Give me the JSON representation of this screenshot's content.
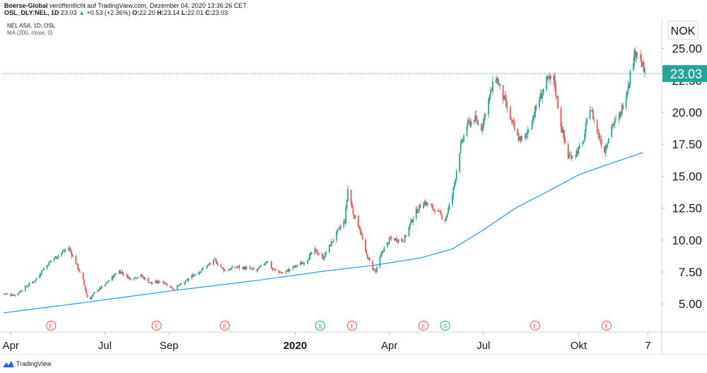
{
  "header": {
    "publisher": "Boerse-Global",
    "published_text": "veröffentlicht auf TradingView.com, Dezember 04, 2020 13:36:26 CET",
    "symbol": "OSL_DLY:NEL, 1D",
    "last": "23.03",
    "change": "+0.53 (+2.36%)",
    "open_label": "O:",
    "open": "22.20",
    "high_label": "H:",
    "high": "23.14",
    "low_label": "L:",
    "low": "22.01",
    "close_label": "C:",
    "close": "23.03"
  },
  "legend": {
    "title": "NEL ASA, 1D, OSL",
    "ma": "MA (200, close, 0)"
  },
  "footer": {
    "brand": "TradingView"
  },
  "colors": {
    "up": "#26a69a",
    "down": "#ef5350",
    "ma": "#2196f3",
    "price_line": "#26a69a",
    "grid": "#e0e3eb",
    "event": "#ef5350",
    "split": "#26a69a"
  },
  "chart_data": {
    "type": "candlestick",
    "currency": "NOK",
    "last_price": "23.03",
    "y_ticks": [
      "5.00",
      "7.50",
      "10.00",
      "12.50",
      "15.00",
      "17.50",
      "20.00",
      "22.50",
      "25.00"
    ],
    "ylim": [
      2.8,
      27.3
    ],
    "x_ticks": [
      "Apr",
      "Jul",
      "Sep",
      "2020",
      "Apr",
      "Jul",
      "Okt",
      "7"
    ],
    "x_tick_dates": [
      "2019-04-01",
      "2019-07-01",
      "2019-09-01",
      "2020-01-01",
      "2020-04-01",
      "2020-07-01",
      "2020-10-01",
      "2020-12-07"
    ],
    "bold_ticks": [
      "2020"
    ],
    "start_date": "2019-03-25",
    "end_date": "2020-12-04",
    "events": [
      {
        "label": "E",
        "date": "2019-05-10"
      },
      {
        "label": "E",
        "date": "2019-08-20"
      },
      {
        "label": "E",
        "date": "2019-10-25"
      },
      {
        "label": "S",
        "date": "2020-01-25"
      },
      {
        "label": "E",
        "date": "2020-02-25"
      },
      {
        "label": "E",
        "date": "2020-05-04"
      },
      {
        "label": "S",
        "date": "2020-05-25"
      },
      {
        "label": "E",
        "date": "2020-08-20"
      },
      {
        "label": "E",
        "date": "2020-10-28"
      }
    ],
    "close_path": [
      [
        "2019-03-25",
        5.8
      ],
      [
        "2019-04-05",
        5.7
      ],
      [
        "2019-04-15",
        6.3
      ],
      [
        "2019-04-25",
        6.9
      ],
      [
        "2019-05-01",
        7.6
      ],
      [
        "2019-05-10",
        8.4
      ],
      [
        "2019-05-20",
        9.0
      ],
      [
        "2019-05-27",
        9.4
      ],
      [
        "2019-06-03",
        8.2
      ],
      [
        "2019-06-10",
        6.8
      ],
      [
        "2019-06-15",
        5.2
      ],
      [
        "2019-06-22",
        6.0
      ],
      [
        "2019-06-30",
        6.4
      ],
      [
        "2019-07-08",
        7.1
      ],
      [
        "2019-07-15",
        7.6
      ],
      [
        "2019-07-25",
        7.0
      ],
      [
        "2019-08-05",
        7.2
      ],
      [
        "2019-08-15",
        6.6
      ],
      [
        "2019-08-25",
        6.8
      ],
      [
        "2019-09-05",
        6.2
      ],
      [
        "2019-09-15",
        6.6
      ],
      [
        "2019-09-25",
        7.3
      ],
      [
        "2019-10-05",
        7.8
      ],
      [
        "2019-10-15",
        8.4
      ],
      [
        "2019-10-25",
        7.6
      ],
      [
        "2019-11-05",
        7.9
      ],
      [
        "2019-11-15",
        7.8
      ],
      [
        "2019-11-25",
        7.6
      ],
      [
        "2019-12-05",
        8.4
      ],
      [
        "2019-12-10",
        7.7
      ],
      [
        "2019-12-20",
        7.4
      ],
      [
        "2019-12-31",
        7.9
      ],
      [
        "2020-01-10",
        8.3
      ],
      [
        "2020-01-20",
        9.2
      ],
      [
        "2020-01-28",
        8.6
      ],
      [
        "2020-02-05",
        9.8
      ],
      [
        "2020-02-12",
        10.8
      ],
      [
        "2020-02-18",
        11.5
      ],
      [
        "2020-02-21",
        14.0
      ],
      [
        "2020-02-26",
        12.1
      ],
      [
        "2020-03-03",
        11.0
      ],
      [
        "2020-03-09",
        9.0
      ],
      [
        "2020-03-16",
        7.8
      ],
      [
        "2020-03-19",
        7.5
      ],
      [
        "2020-03-25",
        9.1
      ],
      [
        "2020-04-02",
        10.1
      ],
      [
        "2020-04-15",
        10.0
      ],
      [
        "2020-04-25",
        12.0
      ],
      [
        "2020-05-04",
        13.0
      ],
      [
        "2020-05-15",
        12.4
      ],
      [
        "2020-05-25",
        11.6
      ],
      [
        "2020-06-01",
        13.5
      ],
      [
        "2020-06-08",
        17.0
      ],
      [
        "2020-06-15",
        19.0
      ],
      [
        "2020-06-22",
        19.5
      ],
      [
        "2020-06-29",
        18.8
      ],
      [
        "2020-07-06",
        21.0
      ],
      [
        "2020-07-13",
        22.8
      ],
      [
        "2020-07-20",
        21.2
      ],
      [
        "2020-07-27",
        19.5
      ],
      [
        "2020-08-03",
        18.0
      ],
      [
        "2020-08-10",
        17.9
      ],
      [
        "2020-08-17",
        19.5
      ],
      [
        "2020-08-24",
        21.0
      ],
      [
        "2020-08-31",
        22.4
      ],
      [
        "2020-09-07",
        22.6
      ],
      [
        "2020-09-14",
        19.0
      ],
      [
        "2020-09-21",
        16.5
      ],
      [
        "2020-09-28",
        16.8
      ],
      [
        "2020-10-05",
        17.5
      ],
      [
        "2020-10-12",
        20.5
      ],
      [
        "2020-10-19",
        18.5
      ],
      [
        "2020-10-26",
        17.0
      ],
      [
        "2020-11-02",
        19.0
      ],
      [
        "2020-11-09",
        19.5
      ],
      [
        "2020-11-16",
        21.5
      ],
      [
        "2020-11-23",
        24.2
      ],
      [
        "2020-11-26",
        25.0
      ],
      [
        "2020-11-30",
        24.0
      ],
      [
        "2020-12-04",
        23.03
      ]
    ],
    "ma_path": [
      [
        "2019-03-25",
        4.3
      ],
      [
        "2019-06-01",
        5.0
      ],
      [
        "2019-09-01",
        6.0
      ],
      [
        "2019-12-01",
        6.9
      ],
      [
        "2020-02-01",
        7.6
      ],
      [
        "2020-03-15",
        8.0
      ],
      [
        "2020-05-01",
        8.6
      ],
      [
        "2020-06-01",
        9.3
      ],
      [
        "2020-07-01",
        10.8
      ],
      [
        "2020-08-01",
        12.5
      ],
      [
        "2020-09-01",
        13.8
      ],
      [
        "2020-10-01",
        15.1
      ],
      [
        "2020-11-01",
        16.0
      ],
      [
        "2020-12-04",
        16.9
      ]
    ]
  }
}
